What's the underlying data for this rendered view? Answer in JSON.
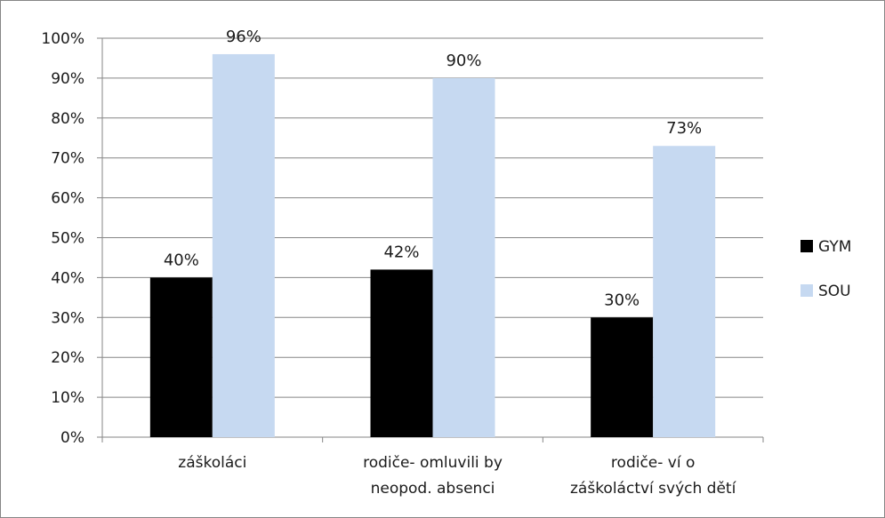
{
  "chart_data": {
    "type": "bar",
    "categories": [
      [
        "záškoláci"
      ],
      [
        "rodiče- omluvili by",
        "neopod. absenci"
      ],
      [
        "rodiče- ví o",
        "záškoláctví svých dětí"
      ]
    ],
    "series": [
      {
        "name": "GYM",
        "values": [
          40,
          42,
          30
        ],
        "color": "#000000"
      },
      {
        "name": "SOU",
        "values": [
          96,
          90,
          73
        ],
        "color": "#c6d9f1"
      }
    ],
    "yticks": [
      "0%",
      "10%",
      "20%",
      "30%",
      "40%",
      "50%",
      "60%",
      "70%",
      "80%",
      "90%",
      "100%"
    ],
    "value_suffix": "%",
    "ylim": [
      0,
      100
    ],
    "ystep": 10,
    "grid": true,
    "legend_position": "right",
    "gridline_color": "#868686",
    "axis_color": "#868686"
  }
}
